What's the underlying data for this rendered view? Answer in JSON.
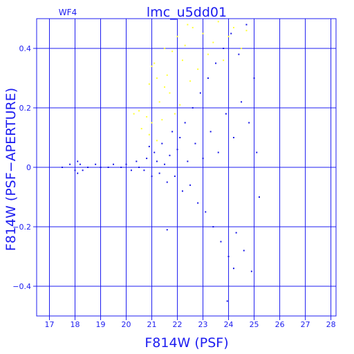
{
  "chart_data": {
    "type": "scatter",
    "title": "lmc_u5dd01",
    "subtitle": "WF4",
    "xlabel": "F814W (PSF)",
    "ylabel": "F814W (PSF−APERTURE)",
    "xlim": [
      16.5,
      28.2
    ],
    "ylim": [
      -0.5,
      0.5
    ],
    "xticks": [
      17,
      18,
      19,
      20,
      21,
      22,
      23,
      24,
      25,
      26,
      27,
      28
    ],
    "yticks": [
      -0.4,
      -0.2,
      0,
      0.2,
      0.4
    ],
    "xtick_labels": [
      "17",
      "18",
      "19",
      "20",
      "21",
      "22",
      "23",
      "24",
      "25",
      "26",
      "27",
      "28"
    ],
    "ytick_labels": [
      "−0.4",
      "−0.2",
      "0",
      "0.2",
      "0.4"
    ],
    "grid": true,
    "series": [
      {
        "color": "#ffff33",
        "points": [
          [
            20.3,
            0.18
          ],
          [
            20.5,
            0.19
          ],
          [
            20.6,
            0.13
          ],
          [
            20.8,
            0.17
          ],
          [
            20.9,
            0.11
          ],
          [
            21.0,
            0.15
          ],
          [
            21.0,
            0.34
          ],
          [
            21.1,
            0.35
          ],
          [
            21.2,
            0.09
          ],
          [
            21.3,
            0.22
          ],
          [
            21.4,
            0.16
          ],
          [
            21.5,
            0.27
          ],
          [
            21.6,
            0.31
          ],
          [
            21.7,
            0.25
          ],
          [
            21.8,
            0.39
          ],
          [
            21.9,
            0.18
          ],
          [
            22.0,
            0.44
          ],
          [
            22.1,
            0.21
          ],
          [
            22.2,
            0.36
          ],
          [
            22.3,
            0.41
          ],
          [
            22.5,
            0.29
          ],
          [
            22.6,
            0.47
          ],
          [
            22.8,
            0.33
          ],
          [
            23.0,
            0.45
          ],
          [
            23.2,
            0.38
          ],
          [
            23.4,
            0.42
          ],
          [
            23.6,
            0.49
          ],
          [
            23.8,
            0.36
          ],
          [
            24.0,
            0.44
          ],
          [
            24.2,
            0.47
          ],
          [
            24.5,
            0.4
          ],
          [
            24.7,
            0.46
          ],
          [
            20.9,
            0.28
          ],
          [
            21.5,
            0.4
          ],
          [
            22.4,
            0.48
          ],
          [
            21.2,
            0.3
          ]
        ]
      },
      {
        "color": "#1414e6",
        "points": [
          [
            17.5,
            0.0
          ],
          [
            17.8,
            0.01
          ],
          [
            18.0,
            -0.01
          ],
          [
            18.1,
            0.02
          ],
          [
            18.1,
            -0.02
          ],
          [
            18.2,
            0.01
          ],
          [
            18.3,
            -0.01
          ],
          [
            18.5,
            0.0
          ],
          [
            18.8,
            0.01
          ],
          [
            19.0,
            0.0
          ],
          [
            19.3,
            0.0
          ],
          [
            19.5,
            0.01
          ],
          [
            19.8,
            0.0
          ],
          [
            20.0,
            0.01
          ],
          [
            20.2,
            -0.01
          ],
          [
            20.4,
            0.02
          ],
          [
            20.5,
            0.0
          ],
          [
            20.7,
            -0.01
          ],
          [
            20.8,
            0.03
          ],
          [
            20.9,
            0.07
          ],
          [
            21.0,
            -0.03
          ],
          [
            21.1,
            0.05
          ],
          [
            21.2,
            0.02
          ],
          [
            21.3,
            -0.02
          ],
          [
            21.4,
            0.08
          ],
          [
            21.5,
            0.01
          ],
          [
            21.6,
            -0.05
          ],
          [
            21.7,
            0.04
          ],
          [
            21.8,
            0.12
          ],
          [
            21.9,
            -0.03
          ],
          [
            22.0,
            0.06
          ],
          [
            22.1,
            0.1
          ],
          [
            22.2,
            -0.08
          ],
          [
            22.3,
            0.15
          ],
          [
            22.4,
            0.02
          ],
          [
            22.5,
            -0.06
          ],
          [
            22.6,
            0.2
          ],
          [
            22.7,
            0.08
          ],
          [
            22.8,
            -0.12
          ],
          [
            22.9,
            0.25
          ],
          [
            23.0,
            0.03
          ],
          [
            23.1,
            -0.15
          ],
          [
            23.2,
            0.3
          ],
          [
            23.3,
            0.12
          ],
          [
            23.4,
            -0.2
          ],
          [
            23.5,
            0.35
          ],
          [
            23.6,
            0.05
          ],
          [
            23.7,
            -0.25
          ],
          [
            23.8,
            0.4
          ],
          [
            23.9,
            0.18
          ],
          [
            24.0,
            -0.3
          ],
          [
            24.1,
            0.45
          ],
          [
            24.2,
            0.1
          ],
          [
            24.3,
            -0.22
          ],
          [
            24.4,
            0.38
          ],
          [
            24.5,
            0.22
          ],
          [
            24.6,
            -0.28
          ],
          [
            24.7,
            0.48
          ],
          [
            24.8,
            0.15
          ],
          [
            24.9,
            -0.35
          ],
          [
            25.0,
            0.3
          ],
          [
            25.1,
            0.05
          ],
          [
            25.2,
            -0.1
          ],
          [
            23.95,
            -0.45
          ],
          [
            21.6,
            -0.21
          ],
          [
            24.2,
            -0.34
          ]
        ]
      }
    ]
  }
}
